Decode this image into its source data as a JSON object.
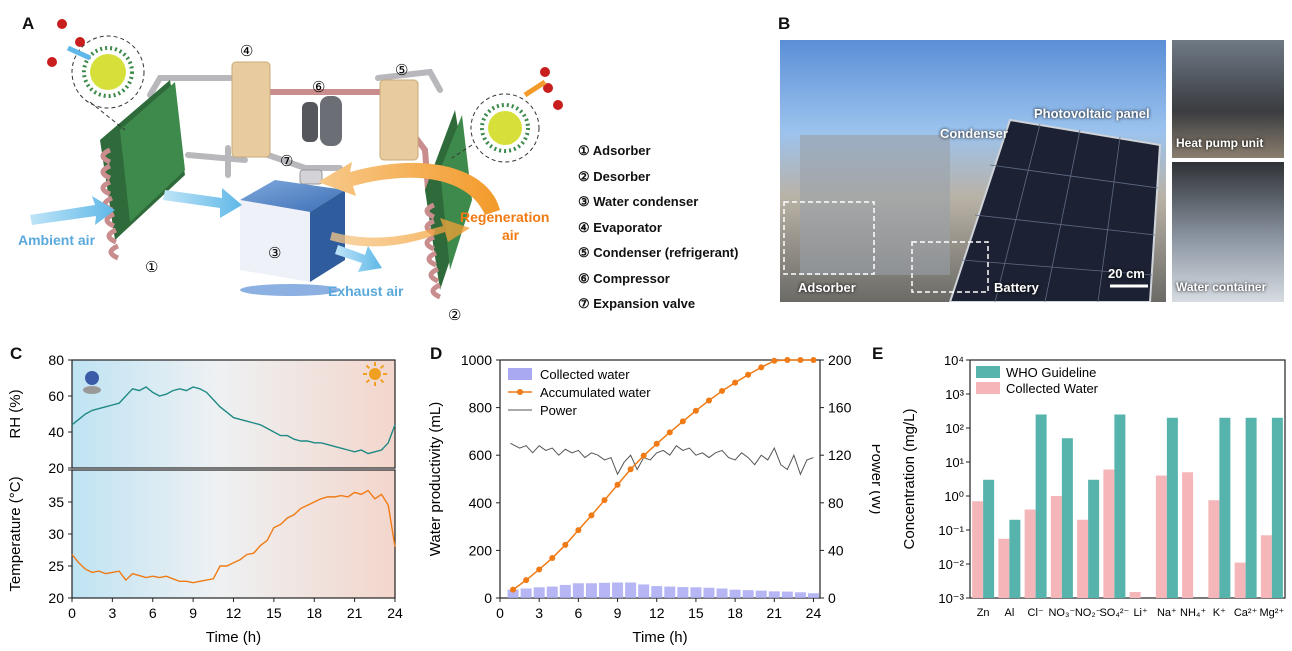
{
  "panels": {
    "A": {
      "letter": "A",
      "labels": {
        "ambient_air": "Ambient air",
        "exhaust_air": "Exhaust air",
        "regeneration_air_1": "Regeneration",
        "regeneration_air_2": "air",
        "n1": "①",
        "n2": "②",
        "n3": "③",
        "n4": "④",
        "n5": "⑤",
        "n6": "⑥",
        "n7": "⑦"
      },
      "legend": [
        "① Adsorber",
        "② Desorber",
        "③ Water condenser",
        "④ Evaporator",
        "⑤ Condenser (refrigerant)",
        "⑥ Compressor",
        "⑦ Expansion valve"
      ]
    },
    "B": {
      "letter": "B",
      "labels": {
        "photovoltaic": "Photovoltaic panel",
        "condenser": "Condenser",
        "adsorber": "Adsorber",
        "battery": "Battery",
        "scale": "20 cm",
        "heat_pump": "Heat pump unit",
        "water_container": "Water container"
      }
    },
    "C": {
      "letter": "C"
    },
    "D": {
      "letter": "D"
    },
    "E": {
      "letter": "E"
    }
  },
  "chart_data": [
    {
      "id": "C-top",
      "type": "line",
      "ylabel": "RH (%)",
      "ylim": [
        20,
        80
      ],
      "yticks": [
        20,
        40,
        60,
        80
      ],
      "xlim": [
        0,
        24
      ],
      "color": "#1f8a85",
      "series": [
        {
          "x": [
            0,
            0.5,
            1,
            1.5,
            2,
            2.5,
            3,
            3.5,
            4,
            4.5,
            5,
            5.5,
            6,
            6.5,
            7,
            7.5,
            8,
            8.5,
            9,
            9.5,
            10,
            10.5,
            11,
            11.5,
            12,
            12.5,
            13,
            13.5,
            14,
            14.5,
            15,
            15.5,
            16,
            16.5,
            17,
            17.5,
            18,
            18.5,
            19,
            19.5,
            20,
            20.5,
            21,
            21.5,
            22,
            22.5,
            23,
            23.5,
            24
          ],
          "values": [
            44,
            47,
            50,
            52,
            53,
            54,
            55,
            56,
            60,
            64,
            63,
            65,
            62,
            60,
            61,
            63,
            64,
            63,
            65,
            64,
            62,
            58,
            54,
            51,
            48,
            47,
            46,
            45,
            44,
            42,
            40,
            38,
            38,
            36,
            35,
            35,
            34,
            34,
            33,
            32,
            31,
            30,
            29,
            30,
            28,
            29,
            30,
            34,
            44
          ]
        }
      ]
    },
    {
      "id": "C-bottom",
      "type": "line",
      "ylabel": "Temperature (°C)",
      "xlabel": "Time (h)",
      "ylim": [
        20,
        40
      ],
      "yticks": [
        20,
        25,
        30,
        35,
        40
      ],
      "xlim": [
        0,
        24
      ],
      "xticks": [
        0,
        3,
        6,
        9,
        12,
        15,
        18,
        21,
        24
      ],
      "color": "#f07a14",
      "series": [
        {
          "x": [
            0,
            0.5,
            1,
            1.5,
            2,
            2.5,
            3,
            3.5,
            4,
            4.5,
            5,
            5.5,
            6,
            6.5,
            7,
            7.5,
            8,
            8.5,
            9,
            9.5,
            10,
            10.5,
            11,
            11.5,
            12,
            12.5,
            13,
            13.5,
            14,
            14.5,
            15,
            15.5,
            16,
            16.5,
            17,
            17.5,
            18,
            18.5,
            19,
            19.5,
            20,
            20.5,
            21,
            21.5,
            22,
            22.5,
            23,
            23.5,
            24
          ],
          "values": [
            26.8,
            25.5,
            24.5,
            24.0,
            24.2,
            23.8,
            24.0,
            24.2,
            22.8,
            23.8,
            23.5,
            23.2,
            23.4,
            23.2,
            23.4,
            23.0,
            22.6,
            22.6,
            22.4,
            22.6,
            22.8,
            23.0,
            25.0,
            25.0,
            25.5,
            26.0,
            26.8,
            27.0,
            28.2,
            29.0,
            31.0,
            31.5,
            32.5,
            33.0,
            34.0,
            34.5,
            35.0,
            35.5,
            35.8,
            35.8,
            36.0,
            35.8,
            36.5,
            36.2,
            36.8,
            35.5,
            36.2,
            34.5,
            28.0
          ]
        }
      ]
    },
    {
      "id": "D",
      "type": "bar",
      "xlabel": "Time (h)",
      "ylabel": "Water productivity (mL)",
      "y2label": "Power (W)",
      "xlim": [
        0,
        24.5
      ],
      "ylim": [
        0,
        1000
      ],
      "y2lim": [
        0,
        200
      ],
      "xticks": [
        0,
        3,
        6,
        9,
        12,
        15,
        18,
        21,
        24
      ],
      "yticks": [
        0,
        200,
        400,
        600,
        800,
        1000
      ],
      "y2ticks": [
        0,
        40,
        80,
        120,
        160,
        200
      ],
      "legend": [
        "Collected water",
        "Accumulated water",
        "Power"
      ],
      "colors": {
        "collected": "#a9a9f2",
        "accumulated": "#f07a14",
        "power": "#555555"
      },
      "series": [
        {
          "name": "Collected water",
          "type": "bar",
          "x": [
            1,
            2,
            3,
            4,
            5,
            6,
            7,
            8,
            9,
            10,
            11,
            12,
            13,
            14,
            15,
            16,
            17,
            18,
            19,
            20,
            21,
            22,
            23,
            24
          ],
          "values": [
            35,
            40,
            45,
            48,
            55,
            62,
            62,
            64,
            65,
            65,
            57,
            50,
            48,
            46,
            45,
            43,
            40,
            35,
            33,
            31,
            28,
            27,
            24,
            20
          ]
        },
        {
          "name": "Accumulated water",
          "type": "line",
          "x": [
            1,
            2,
            3,
            4,
            5,
            6,
            7,
            8,
            9,
            10,
            11,
            12,
            13,
            14,
            15,
            16,
            17,
            18,
            19,
            20,
            21,
            22,
            23,
            24
          ],
          "values": [
            35,
            75,
            120,
            168,
            223,
            285,
            347,
            411,
            476,
            541,
            598,
            648,
            696,
            742,
            787,
            830,
            870,
            905,
            938,
            969,
            997,
            1024,
            1048,
            1068
          ]
        },
        {
          "name": "Power",
          "type": "line",
          "axis": "y2",
          "x": [
            0.8,
            1.5,
            2,
            2.5,
            3,
            3.5,
            4,
            4.5,
            5,
            5.5,
            6,
            6.5,
            7,
            7.5,
            8,
            8.5,
            9,
            9.5,
            10,
            10.5,
            11,
            11.5,
            12,
            12.5,
            13,
            13.5,
            14,
            14.5,
            15,
            15.5,
            16,
            16.5,
            17,
            17.5,
            18,
            18.5,
            19,
            19.5,
            20,
            20.5,
            21,
            21.5,
            22,
            22.5,
            23,
            23.5,
            24
          ],
          "values": [
            130,
            126,
            128,
            122,
            128,
            124,
            126,
            120,
            125,
            122,
            124,
            118,
            122,
            120,
            116,
            118,
            104,
            114,
            120,
            108,
            118,
            116,
            122,
            124,
            120,
            128,
            124,
            126,
            120,
            122,
            118,
            122,
            124,
            118,
            116,
            122,
            118,
            112,
            120,
            116,
            126,
            112,
            108,
            120,
            104,
            116,
            118
          ]
        }
      ]
    },
    {
      "id": "E",
      "type": "bar",
      "ylabel": "Concentration (mg/L)",
      "yscale": "log",
      "ylim": [
        0.001,
        10000
      ],
      "yticks": [
        "10⁻³",
        "10⁻²",
        "10⁻¹",
        "10⁰",
        "10¹",
        "10²",
        "10³",
        "10⁴"
      ],
      "categories": [
        "Zn",
        "Al",
        "Cl⁻",
        "NO₃⁻",
        "NO₂⁻",
        "SO₄²⁻",
        "Li⁺",
        "Na⁺",
        "NH₄⁺",
        "K⁺",
        "Ca²⁺",
        "Mg²⁺"
      ],
      "legend": [
        "WHO Guideline",
        "Collected Water"
      ],
      "colors": {
        "who": "#56b4ad",
        "collected": "#f4b6b9"
      },
      "series": [
        {
          "name": "WHO Guideline",
          "values": [
            3,
            0.2,
            250,
            50,
            3,
            250,
            null,
            200,
            null,
            200,
            200,
            200
          ]
        },
        {
          "name": "Collected Water",
          "values": [
            0.7,
            0.055,
            0.4,
            1.0,
            0.2,
            6.0,
            0.0015,
            4.0,
            5.0,
            0.75,
            0.011,
            0.07
          ]
        }
      ]
    }
  ]
}
